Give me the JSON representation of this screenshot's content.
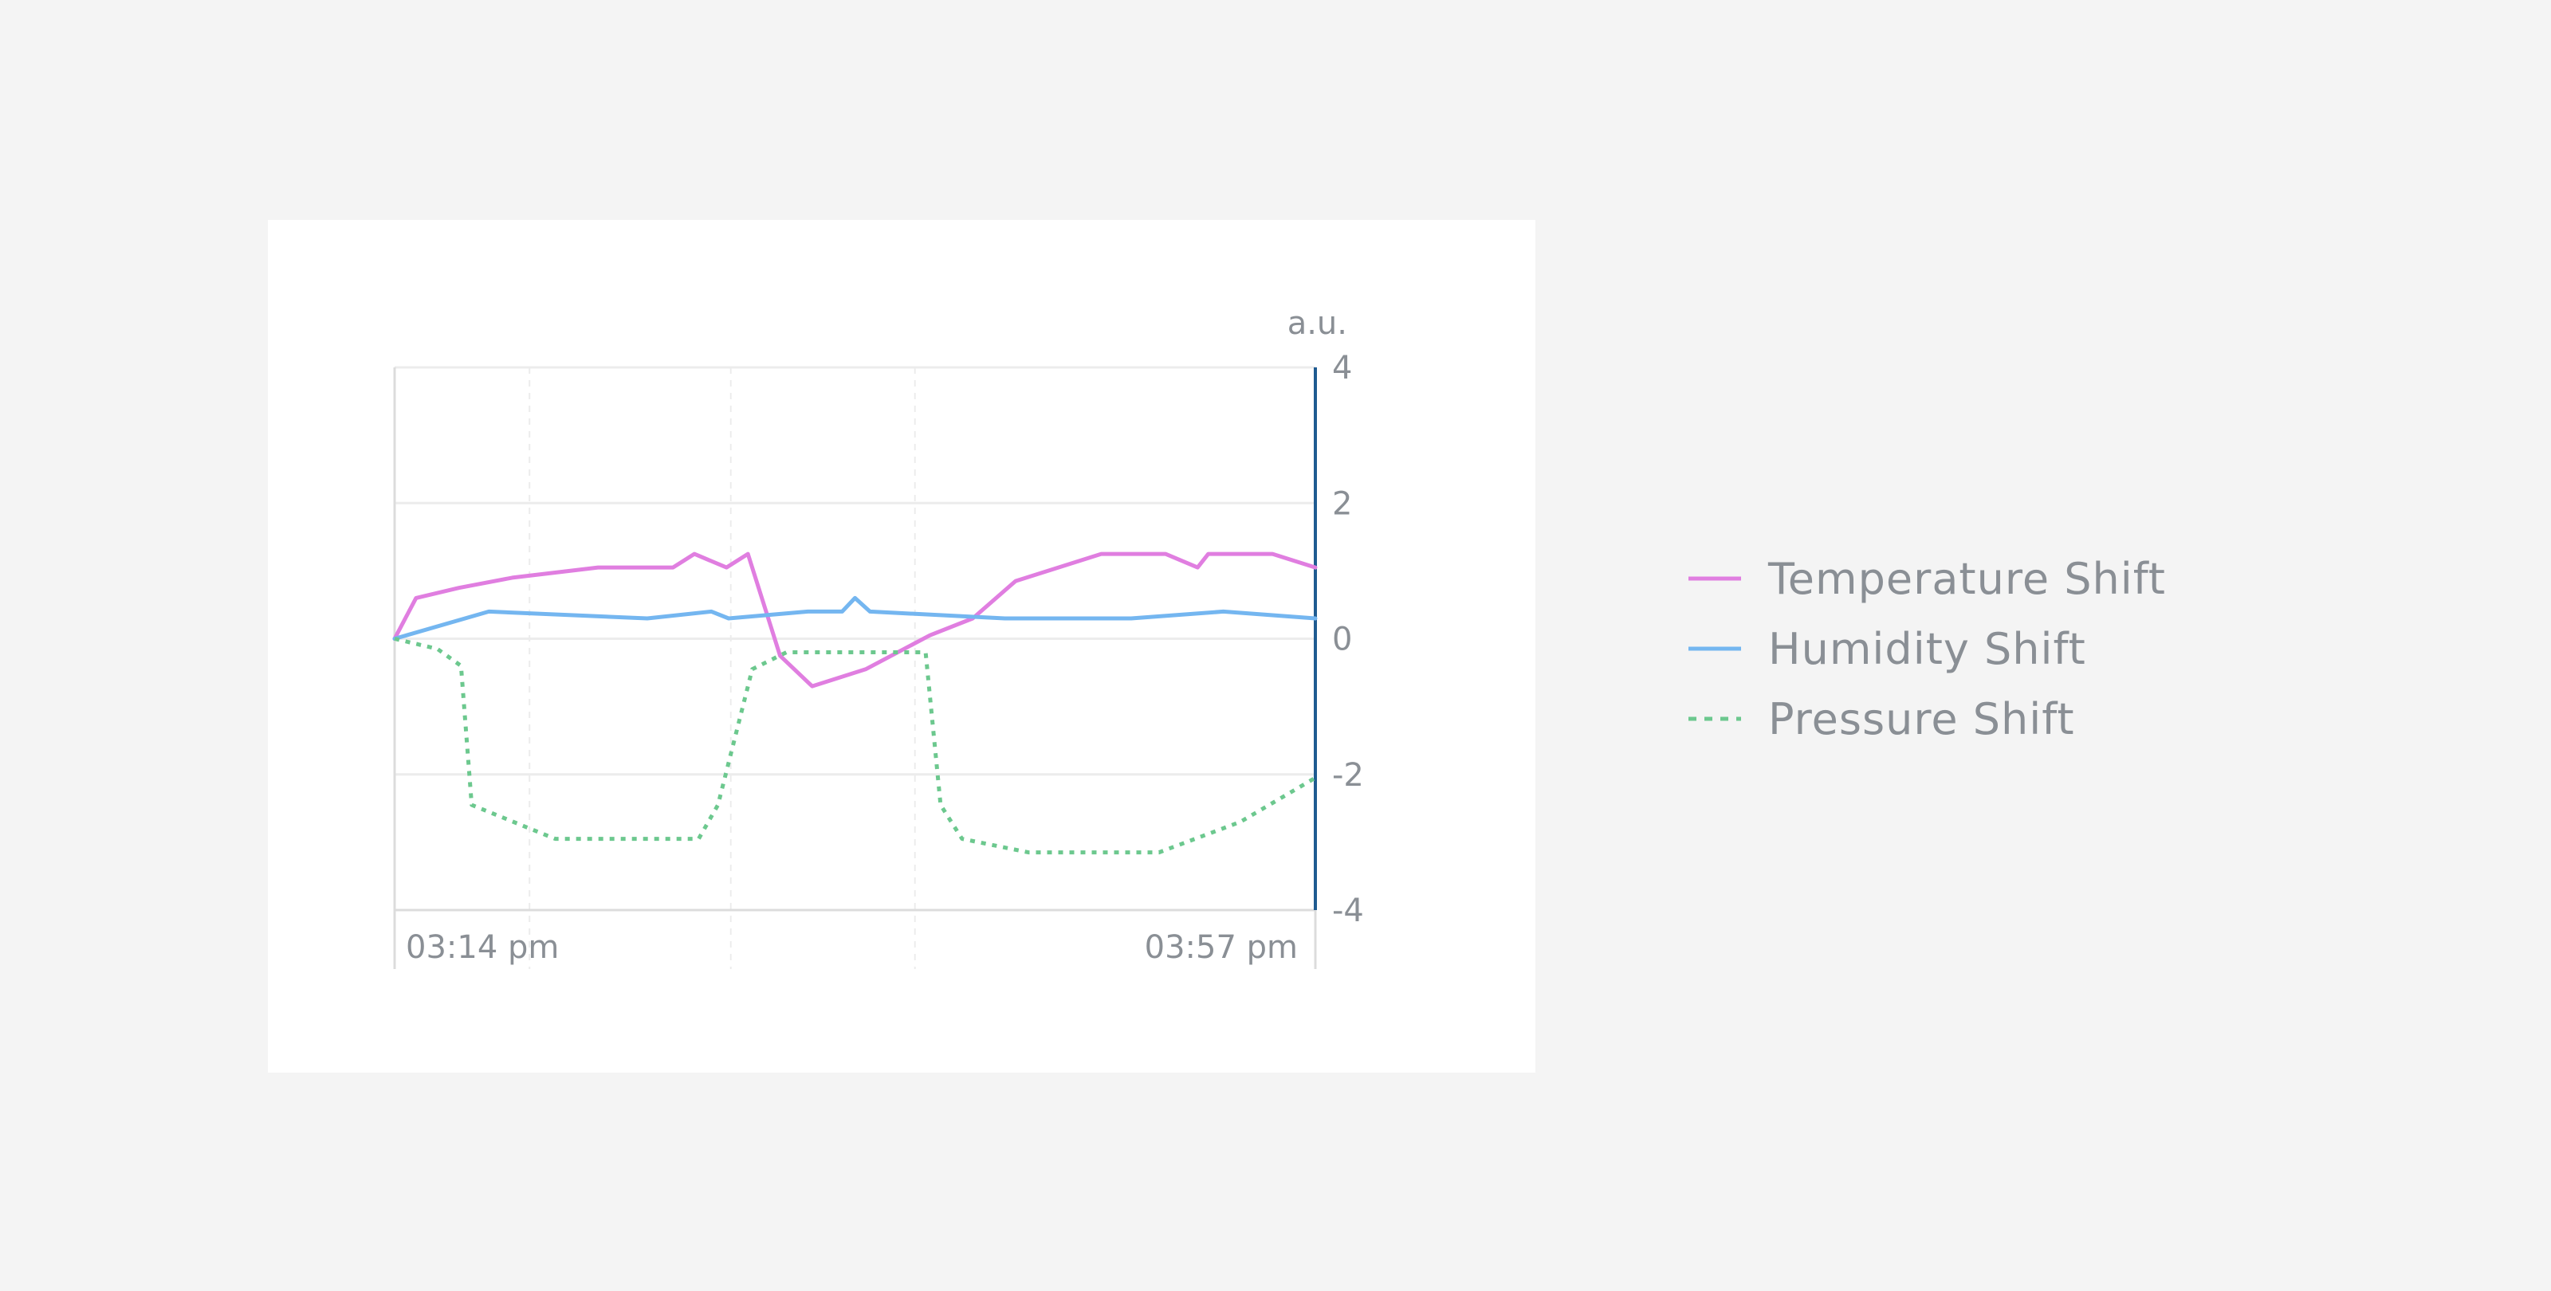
{
  "chart_data": {
    "type": "line",
    "title": "",
    "xlabel": "",
    "ylabel": "a.u.",
    "ylim": [
      -4,
      4
    ],
    "y_ticks": [
      "4",
      "2",
      "0",
      "-2",
      "-4"
    ],
    "x_tick_labels": [
      "03:14 pm",
      "03:57 pm"
    ],
    "xlim": [
      0,
      43
    ],
    "grid": true,
    "legend_position": "right",
    "series": [
      {
        "name": "Temperature Shift",
        "color": "#e07ee0",
        "style": "solid",
        "points": [
          [
            0,
            0
          ],
          [
            1,
            0.6
          ],
          [
            3,
            0.75
          ],
          [
            5.5,
            0.9
          ],
          [
            9.5,
            1.05
          ],
          [
            13,
            1.05
          ],
          [
            14,
            1.25
          ],
          [
            15.5,
            1.05
          ],
          [
            16.5,
            1.25
          ],
          [
            18,
            -0.25
          ],
          [
            19.5,
            -0.7
          ],
          [
            22,
            -0.45
          ],
          [
            25,
            0.05
          ],
          [
            27,
            0.3
          ],
          [
            29,
            0.85
          ],
          [
            33,
            1.25
          ],
          [
            36,
            1.25
          ],
          [
            37.5,
            1.05
          ],
          [
            38,
            1.25
          ],
          [
            41,
            1.25
          ],
          [
            43,
            1.05
          ]
        ]
      },
      {
        "name": "Humidity Shift",
        "color": "#74b6f0",
        "style": "solid",
        "points": [
          [
            0,
            0
          ],
          [
            4.4,
            0.4
          ],
          [
            11.8,
            0.3
          ],
          [
            14.8,
            0.4
          ],
          [
            15.6,
            0.3
          ],
          [
            19.3,
            0.4
          ],
          [
            20.9,
            0.4
          ],
          [
            21.5,
            0.6
          ],
          [
            22.2,
            0.4
          ],
          [
            28.5,
            0.3
          ],
          [
            34.4,
            0.3
          ],
          [
            38.7,
            0.4
          ],
          [
            43,
            0.3
          ]
        ]
      },
      {
        "name": "Pressure Shift",
        "color": "#6cc88e",
        "style": "dashed",
        "points": [
          [
            0,
            0
          ],
          [
            2,
            -0.15
          ],
          [
            3.1,
            -0.4
          ],
          [
            3.6,
            -2.45
          ],
          [
            7.5,
            -2.95
          ],
          [
            14.2,
            -2.95
          ],
          [
            15.1,
            -2.45
          ],
          [
            16.7,
            -0.45
          ],
          [
            18.3,
            -0.2
          ],
          [
            24.8,
            -0.2
          ],
          [
            25.5,
            -2.45
          ],
          [
            26.5,
            -2.95
          ],
          [
            29.6,
            -3.15
          ],
          [
            35.7,
            -3.15
          ],
          [
            39.5,
            -2.7
          ],
          [
            43,
            -2.05
          ]
        ]
      }
    ]
  }
}
